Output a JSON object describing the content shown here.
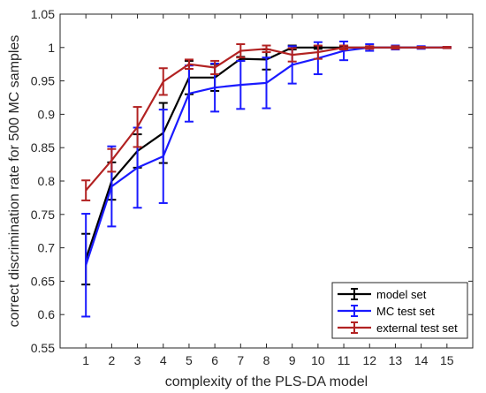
{
  "chart_data": {
    "type": "line",
    "title": "",
    "xlabel": "complexity of the PLS-DA model",
    "ylabel": "correct discrimination rate for 500 MC samples",
    "x": [
      1,
      2,
      3,
      4,
      5,
      6,
      7,
      8,
      9,
      10,
      11,
      12,
      13,
      14,
      15
    ],
    "xlim": [
      0,
      16
    ],
    "ylim": [
      0.55,
      1.05
    ],
    "xticks": [
      "1",
      "2",
      "3",
      "4",
      "5",
      "6",
      "7",
      "8",
      "9",
      "10",
      "11",
      "12",
      "13",
      "14",
      "15"
    ],
    "yticks": [
      "0.55",
      "0.6",
      "0.65",
      "0.7",
      "0.75",
      "0.8",
      "0.85",
      "0.9",
      "0.95",
      "1",
      "1.05"
    ],
    "grid": false,
    "legend_position": "bottom-right",
    "series": [
      {
        "name": "model set",
        "color": "#000000",
        "values": [
          0.683,
          0.8,
          0.845,
          0.872,
          0.955,
          0.955,
          0.983,
          0.982,
          1.0,
          1.0,
          1.0,
          1.0,
          1.0,
          1.0,
          1.0
        ],
        "error": [
          0.038,
          0.028,
          0.025,
          0.045,
          0.025,
          0.02,
          0.003,
          0.015,
          0.003,
          0.002,
          0.002,
          0.001,
          0.001,
          0.0005,
          0.0005
        ]
      },
      {
        "name": "MC test set",
        "color": "#1a1aff",
        "values": [
          0.674,
          0.792,
          0.82,
          0.837,
          0.931,
          0.94,
          0.944,
          0.947,
          0.974,
          0.984,
          0.995,
          1.0,
          1.0,
          1.0,
          1.0
        ],
        "error": [
          0.077,
          0.06,
          0.06,
          0.07,
          0.042,
          0.036,
          0.036,
          0.038,
          0.028,
          0.024,
          0.014,
          0.005,
          0.003,
          0.002,
          0.001
        ]
      },
      {
        "name": "external test set",
        "color": "#b22222",
        "values": [
          0.786,
          0.831,
          0.881,
          0.949,
          0.975,
          0.97,
          0.995,
          0.998,
          0.989,
          0.993,
          1.0,
          1.0,
          1.0,
          1.0,
          1.0
        ],
        "error": [
          0.015,
          0.017,
          0.03,
          0.02,
          0.007,
          0.01,
          0.01,
          0.005,
          0.01,
          0.01,
          0.003,
          0.002,
          0.002,
          0.001,
          0.001
        ]
      }
    ]
  }
}
